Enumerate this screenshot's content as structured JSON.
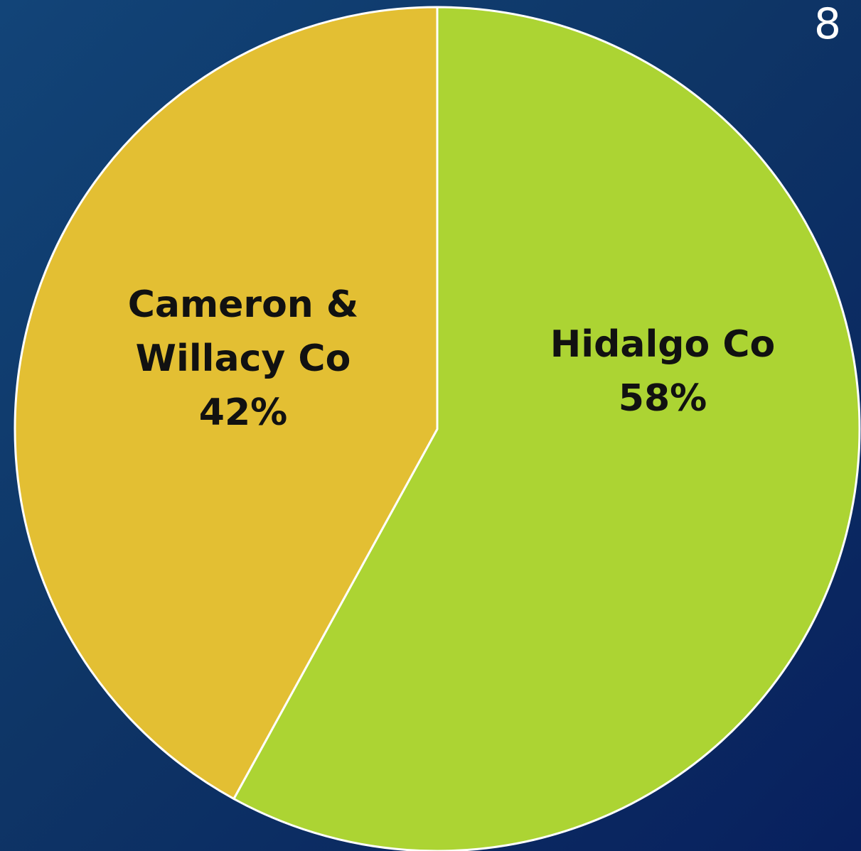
{
  "page_number": "8",
  "colors": {
    "background": "#0e3566",
    "slice_border": "#ffffff",
    "label_text": "#111111"
  },
  "chart_data": {
    "type": "pie",
    "title": "",
    "start_angle_deg": 0,
    "direction": "clockwise",
    "slices": [
      {
        "label_lines": [
          "Hidalgo Co"
        ],
        "percent_label": "58%",
        "value": 58,
        "color": "#acd433"
      },
      {
        "label_lines": [
          "Cameron &",
          "Willacy Co"
        ],
        "percent_label": "42%",
        "value": 42,
        "color": "#e3bf33"
      }
    ],
    "legend": "none",
    "data_labels": "inside"
  }
}
